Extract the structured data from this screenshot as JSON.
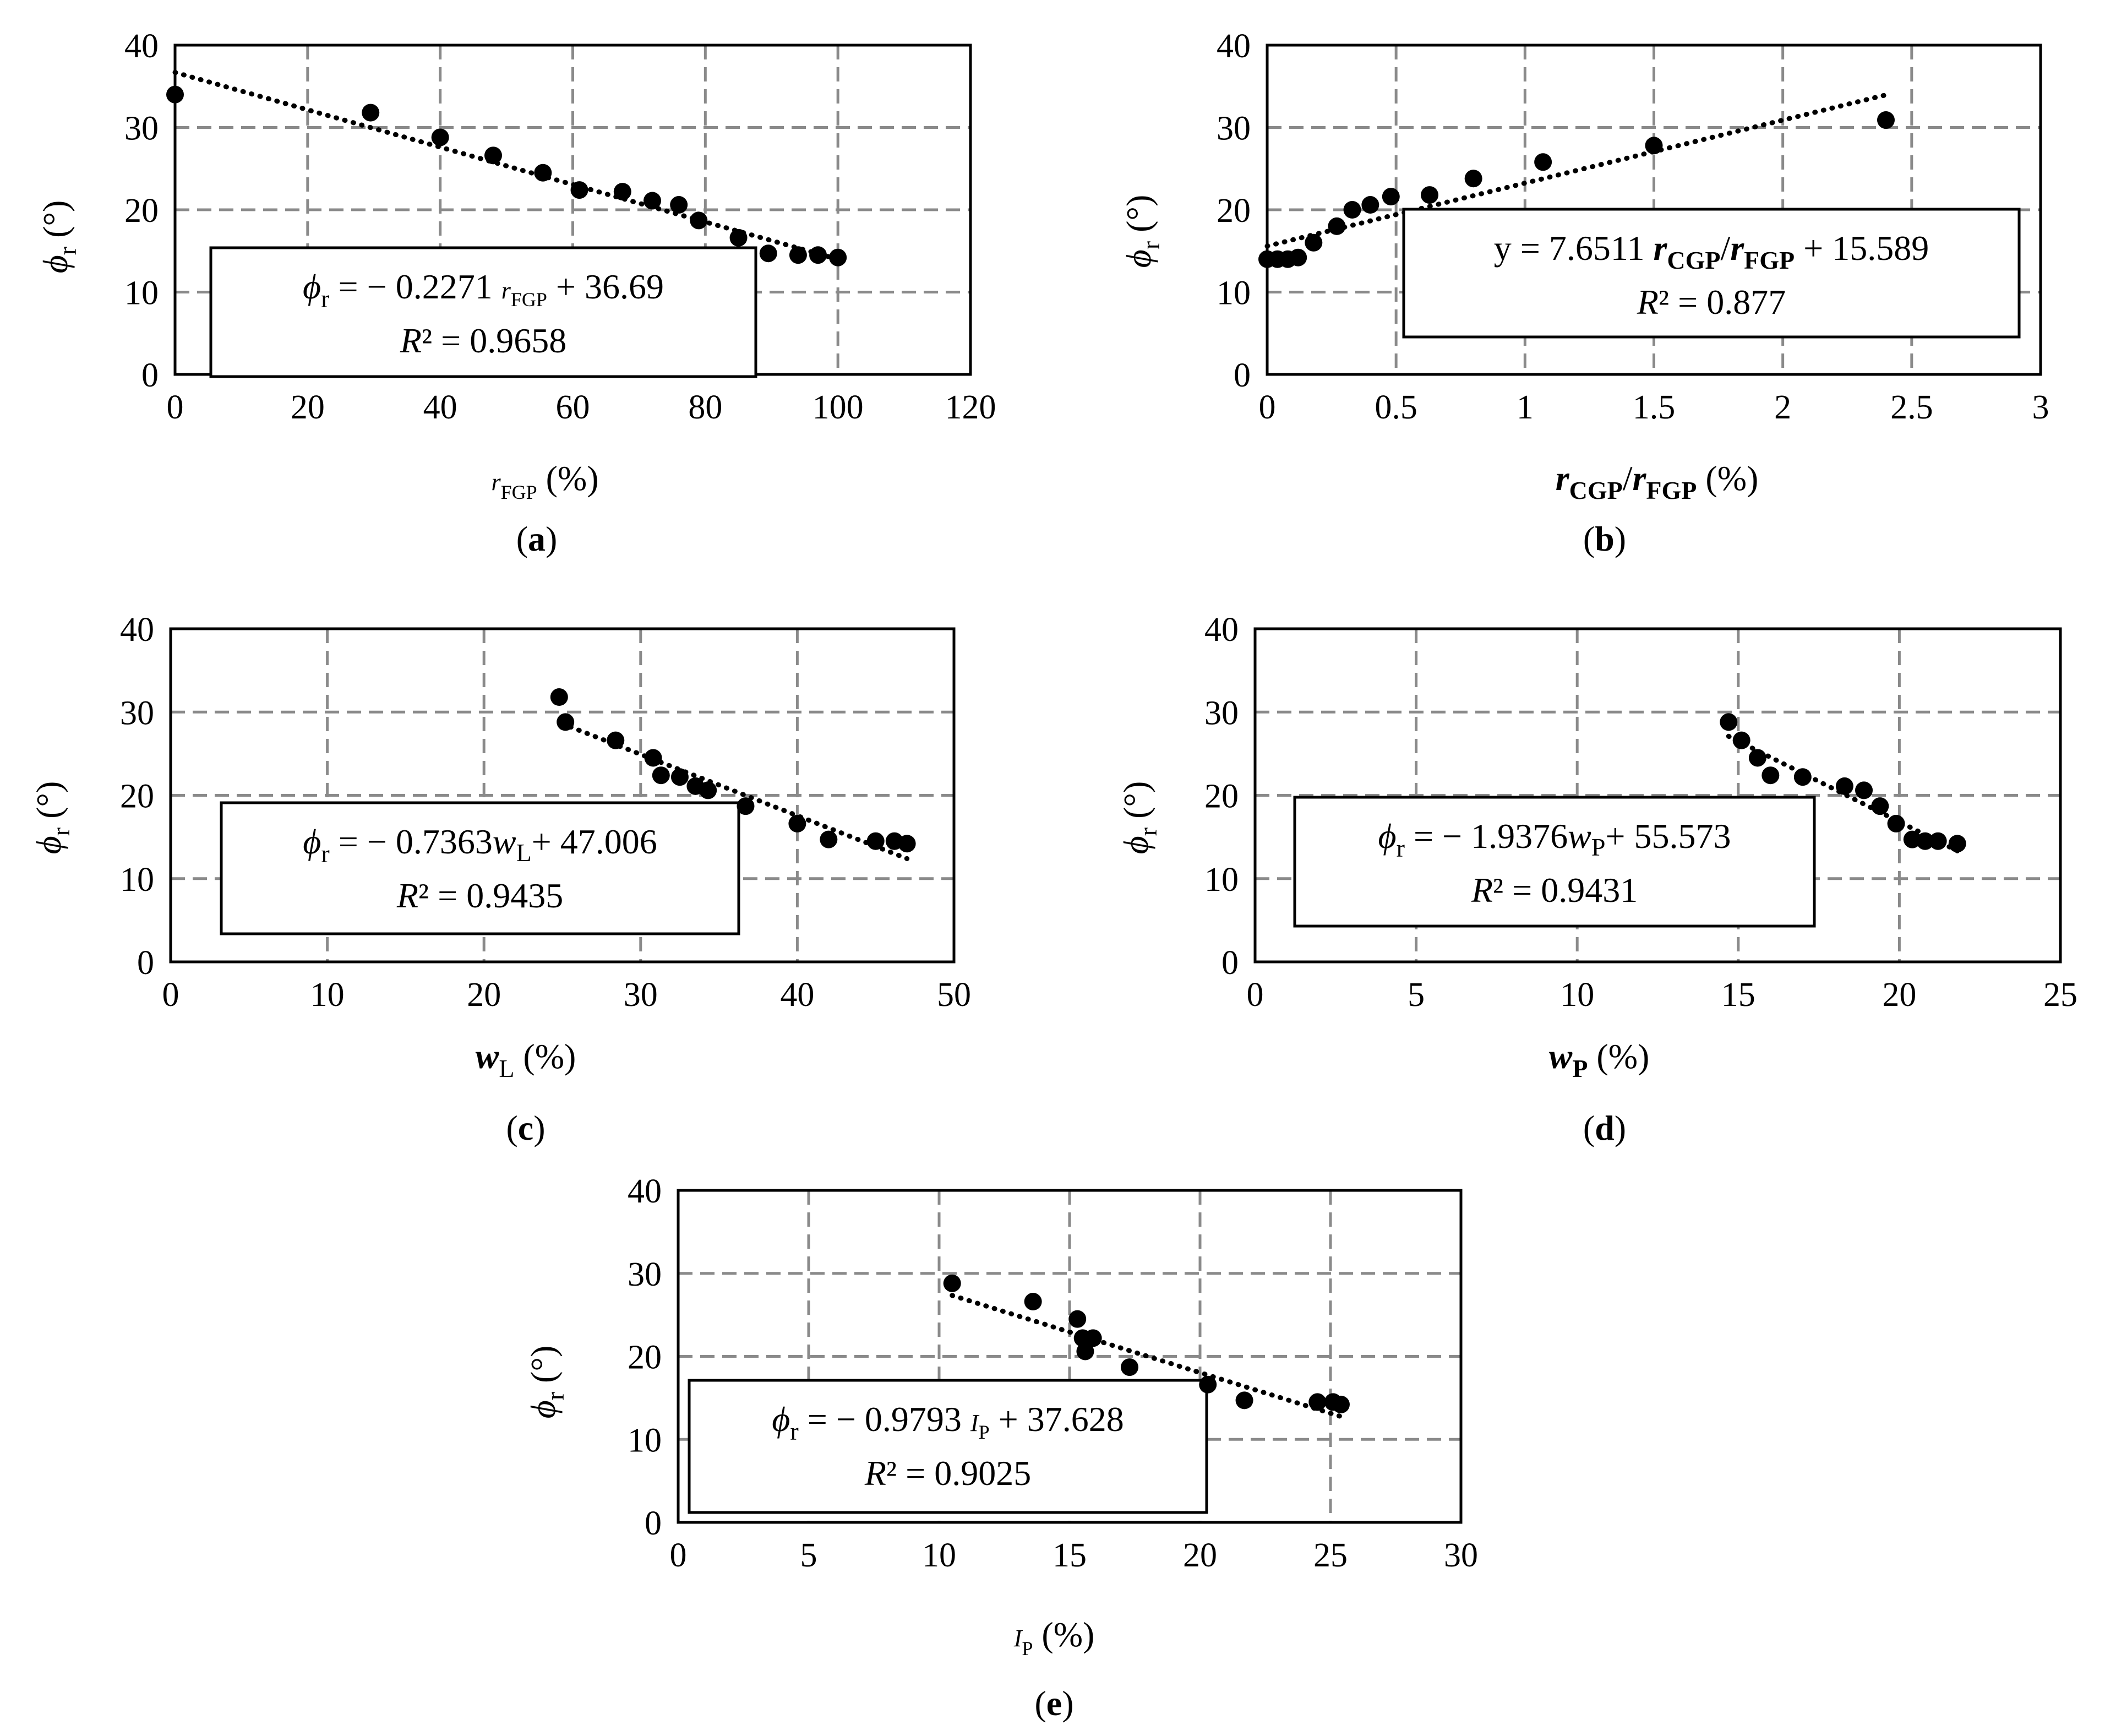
{
  "chart_data": [
    {
      "id": "a",
      "type": "scatter",
      "caption_letter": "a",
      "xlabel": {
        "main": "r",
        "sub": "FGP",
        "suffix": "(%)",
        "main_style": "italic",
        "sub_style": "normal",
        "sub_small": true
      },
      "ylabel": {
        "main": "ϕ",
        "sub": "r",
        "suffix": "(°)"
      },
      "xlim": [
        0,
        120
      ],
      "ylim": [
        0,
        40
      ],
      "xticks": [
        0,
        20,
        40,
        60,
        80,
        100,
        120
      ],
      "xtick_labels": [
        "0",
        "20",
        "40",
        "60",
        "80",
        "100",
        "120"
      ],
      "yticks": [
        0,
        10,
        20,
        30,
        40
      ],
      "ytick_labels": [
        "0",
        "10",
        "20",
        "30",
        "40"
      ],
      "grid": true,
      "points": [
        [
          0,
          34
        ],
        [
          29.5,
          31.8
        ],
        [
          40,
          28.8
        ],
        [
          48,
          26.6
        ],
        [
          55.5,
          24.5
        ],
        [
          61,
          22.4
        ],
        [
          67.5,
          22.2
        ],
        [
          72,
          21.1
        ],
        [
          76,
          20.6
        ],
        [
          79,
          18.7
        ],
        [
          85,
          16.6
        ],
        [
          89.5,
          14.7
        ],
        [
          94,
          14.5
        ],
        [
          97,
          14.5
        ],
        [
          100,
          14.2
        ]
      ],
      "trendline": {
        "slope": -0.2271,
        "intercept": 36.69,
        "x_range": [
          0,
          100
        ]
      },
      "equation": {
        "lhs": "ϕ",
        "lhs_sub": "r",
        "lhs_italic": true,
        "coef": "= − 0.2271 ",
        "var": "r",
        "var_sub": "FGP",
        "var_small": true,
        "tail": " + 36.69"
      },
      "r2": "R² = 0.9658",
      "legend_position": "bottom-left"
    },
    {
      "id": "b",
      "type": "scatter",
      "caption_letter": "b",
      "xlabel": {
        "main": "r",
        "sub": "CGP",
        "mid": "/",
        "main2": "r",
        "sub2": "FGP",
        "suffix": "(%)",
        "bold": true
      },
      "ylabel": {
        "main": "ϕ",
        "sub": "r",
        "suffix": "(°)"
      },
      "xlim": [
        0,
        3
      ],
      "ylim": [
        0,
        40
      ],
      "xticks": [
        0,
        0.5,
        1,
        1.5,
        2,
        2.5,
        3
      ],
      "xtick_labels": [
        "0",
        "0.5",
        "1",
        "1.5",
        "2",
        "2.5",
        "3"
      ],
      "yticks": [
        0,
        10,
        20,
        30,
        40
      ],
      "ytick_labels": [
        "0",
        "10",
        "20",
        "30",
        "40"
      ],
      "grid": true,
      "points": [
        [
          0,
          14
        ],
        [
          0.04,
          14
        ],
        [
          0.08,
          14
        ],
        [
          0.12,
          14.2
        ],
        [
          0.18,
          16
        ],
        [
          0.27,
          18
        ],
        [
          0.33,
          20
        ],
        [
          0.4,
          20.6
        ],
        [
          0.48,
          21.6
        ],
        [
          0.63,
          21.8
        ],
        [
          0.8,
          23.8
        ],
        [
          1.07,
          25.8
        ],
        [
          1.5,
          27.8
        ],
        [
          2.4,
          30.9
        ]
      ],
      "trendline": {
        "slope": 7.6511,
        "intercept": 15.589,
        "x_range": [
          0,
          2.4
        ]
      },
      "equation": {
        "text": "y = 7.6511 ",
        "var": "r",
        "var_sub": "CGP",
        "mid": "/",
        "var2": "r",
        "var2_sub": "FGP",
        "tail": " + 15.589"
      },
      "r2": "R² = 0.877",
      "legend_position": "center-right"
    },
    {
      "id": "c",
      "type": "scatter",
      "caption_letter": "c",
      "xlabel": {
        "main": "w",
        "sub": "L",
        "suffix": " (%)"
      },
      "ylabel": {
        "main": "ϕ",
        "sub": "r",
        "suffix": "(°)"
      },
      "xlim": [
        0,
        50
      ],
      "ylim": [
        0,
        40
      ],
      "xticks": [
        0,
        10,
        20,
        30,
        40,
        50
      ],
      "xtick_labels": [
        "0",
        "10",
        "20",
        "30",
        "40",
        "50"
      ],
      "yticks": [
        0,
        10,
        20,
        30,
        40
      ],
      "ytick_labels": [
        "0",
        "10",
        "20",
        "30",
        "40"
      ],
      "grid": true,
      "points": [
        [
          24.8,
          31.8
        ],
        [
          25.2,
          28.8
        ],
        [
          28.4,
          26.6
        ],
        [
          30.8,
          24.5
        ],
        [
          31.3,
          22.4
        ],
        [
          32.5,
          22.2
        ],
        [
          33.5,
          21.1
        ],
        [
          34.3,
          20.6
        ],
        [
          36.7,
          18.7
        ],
        [
          40,
          16.6
        ],
        [
          42,
          14.7
        ],
        [
          45,
          14.5
        ],
        [
          46.2,
          14.5
        ],
        [
          47,
          14.2
        ]
      ],
      "trendline": {
        "slope": -0.7363,
        "intercept": 47.006,
        "x_range": [
          25,
          47
        ]
      },
      "equation": {
        "lhs": "ϕ",
        "lhs_sub": "r",
        "coef": "= − 0.7363",
        "var": "w",
        "var_sub": "L",
        "tail": "+ 47.006"
      },
      "r2": "R² = 0.9435",
      "legend_position": "bottom-left"
    },
    {
      "id": "d",
      "type": "scatter",
      "caption_letter": "d",
      "xlabel": {
        "main": "w",
        "sub": "P",
        "suffix": "(%)",
        "bold_sub": true
      },
      "ylabel": {
        "main": "ϕ",
        "sub": "r",
        "suffix": "(°)"
      },
      "xlim": [
        0,
        25
      ],
      "ylim": [
        0,
        40
      ],
      "xticks": [
        0,
        5,
        10,
        15,
        20,
        25
      ],
      "xtick_labels": [
        "0",
        "5",
        "10",
        "15",
        "20",
        "25"
      ],
      "yticks": [
        0,
        10,
        20,
        30,
        40
      ],
      "ytick_labels": [
        "0",
        "10",
        "20",
        "30",
        "40"
      ],
      "grid": true,
      "points": [
        [
          14.7,
          28.8
        ],
        [
          15.1,
          26.6
        ],
        [
          15.6,
          24.5
        ],
        [
          16,
          22.4
        ],
        [
          17,
          22.2
        ],
        [
          18.3,
          21.1
        ],
        [
          18.9,
          20.6
        ],
        [
          19.4,
          18.7
        ],
        [
          19.9,
          16.6
        ],
        [
          20.4,
          14.7
        ],
        [
          20.8,
          14.5
        ],
        [
          21.2,
          14.5
        ],
        [
          21.8,
          14.2
        ]
      ],
      "trendline": {
        "slope": -1.9376,
        "intercept": 55.573,
        "x_range": [
          14.7,
          21.8
        ]
      },
      "equation": {
        "lhs": "ϕ",
        "lhs_sub": "r",
        "coef": "= − 1.9376",
        "var": "w",
        "var_sub": "P",
        "tail": "+ 55.573"
      },
      "r2": "R² = 0.9431",
      "legend_position": "bottom-left"
    },
    {
      "id": "e",
      "type": "scatter",
      "caption_letter": "e",
      "xlabel": {
        "main": "I",
        "sub": "P",
        "suffix": "(%)",
        "sub_small": true
      },
      "ylabel": {
        "main": "ϕ",
        "sub": "r",
        "suffix": "(°)"
      },
      "xlim": [
        0,
        30
      ],
      "ylim": [
        0,
        40
      ],
      "xticks": [
        0,
        5,
        10,
        15,
        20,
        25,
        30
      ],
      "xtick_labels": [
        "0",
        "5",
        "10",
        "15",
        "20",
        "25",
        "30"
      ],
      "yticks": [
        0,
        10,
        20,
        30,
        40
      ],
      "ytick_labels": [
        "0",
        "10",
        "20",
        "30",
        "40"
      ],
      "grid": true,
      "points": [
        [
          10.5,
          28.8
        ],
        [
          13.6,
          26.6
        ],
        [
          15.3,
          24.5
        ],
        [
          15.5,
          22.2
        ],
        [
          15.6,
          20.6
        ],
        [
          15.9,
          22.2
        ],
        [
          17.3,
          18.7
        ],
        [
          20.3,
          16.6
        ],
        [
          21.7,
          14.7
        ],
        [
          24.5,
          14.5
        ],
        [
          25.1,
          14.5
        ],
        [
          25.4,
          14.2
        ]
      ],
      "trendline": {
        "slope": -0.9793,
        "intercept": 37.628,
        "x_range": [
          10.5,
          25.5
        ]
      },
      "equation": {
        "lhs": "ϕ",
        "lhs_sub": "r",
        "coef": "= − 0.9793 ",
        "var": "I",
        "var_sub": "P",
        "var_small": true,
        "tail": " + 37.628"
      },
      "r2": "R² = 0.9025",
      "legend_position": "bottom-left"
    }
  ]
}
